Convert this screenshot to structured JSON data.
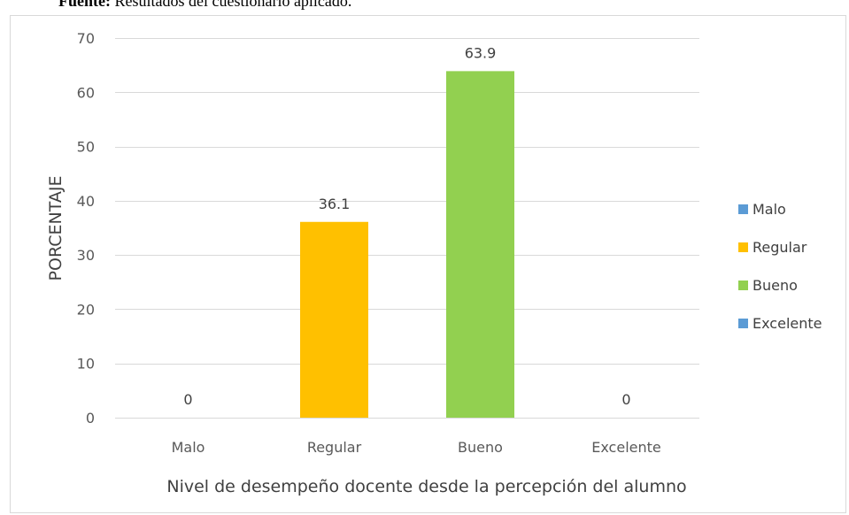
{
  "caption": {
    "bold": "Fuente:",
    "text": " Resultados del cuestionario aplicado."
  },
  "chart_data": {
    "type": "bar",
    "categories": [
      "Malo",
      "Regular",
      "Bueno",
      "Excelente"
    ],
    "values": [
      0,
      36.1,
      63.9,
      0
    ],
    "data_labels": [
      "0",
      "36.1",
      "63.9",
      "0"
    ],
    "colors": [
      "#5b9bd5",
      "#ffc000",
      "#92d050",
      "#5b9bd5"
    ],
    "title": "",
    "xlabel": "Nivel de desempeño docente desde la percepción del alumno",
    "ylabel": "PORCENTAJE",
    "ylim": [
      0,
      70
    ],
    "yticks": [
      0,
      10,
      20,
      30,
      40,
      50,
      60,
      70
    ],
    "grid": true,
    "legend": {
      "position": "right",
      "entries": [
        {
          "label": "Malo",
          "color": "#5b9bd5"
        },
        {
          "label": "Regular",
          "color": "#ffc000"
        },
        {
          "label": "Bueno",
          "color": "#92d050"
        },
        {
          "label": "Excelente",
          "color": "#5b9bd5"
        }
      ]
    }
  }
}
